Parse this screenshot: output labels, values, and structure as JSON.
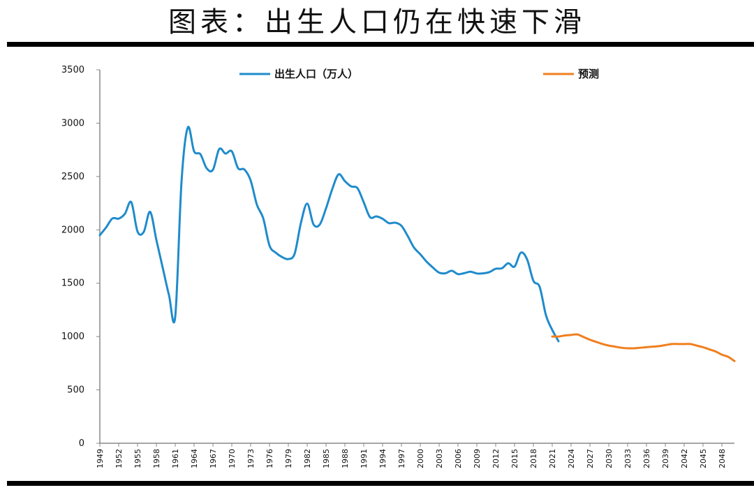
{
  "header": {
    "title": "图表：出生人口仍在快速下滑"
  },
  "chart_data": {
    "type": "line",
    "title": "",
    "xlabel": "",
    "ylabel": "",
    "ylim": [
      0,
      3500
    ],
    "xlim": [
      1949,
      2050
    ],
    "y_ticks": [
      0,
      500,
      1000,
      1500,
      2000,
      2500,
      3000,
      3500
    ],
    "y_tick_labels": [
      "0",
      "500",
      "1000",
      "1500",
      "2000",
      "2500",
      "3000",
      "3500"
    ],
    "x_ticks": [
      1949,
      1952,
      1955,
      1958,
      1961,
      1964,
      1967,
      1970,
      1973,
      1976,
      1979,
      1982,
      1985,
      1988,
      1991,
      1994,
      1997,
      2000,
      2003,
      2006,
      2009,
      2012,
      2015,
      2018,
      2021,
      2024,
      2027,
      2030,
      2033,
      2036,
      2039,
      2042,
      2045,
      2048
    ],
    "x_tick_labels": [
      "1949",
      "1952",
      "1955",
      "1958",
      "1961",
      "1964",
      "1967",
      "1970",
      "1973",
      "1976",
      "1979",
      "1982",
      "1985",
      "1988",
      "1991",
      "1994",
      "1997",
      "2000",
      "2003",
      "2006",
      "2009",
      "2012",
      "2015",
      "2018",
      "2021",
      "2024",
      "2027",
      "2030",
      "2033",
      "2036",
      "2039",
      "2042",
      "2045",
      "2048"
    ],
    "grid": false,
    "legend_position": "top",
    "series": [
      {
        "name": "出生人口（万人）",
        "color": "#1f8bcb",
        "x": [
          1949,
          1950,
          1951,
          1952,
          1953,
          1954,
          1955,
          1956,
          1957,
          1958,
          1959,
          1960,
          1961,
          1962,
          1963,
          1964,
          1965,
          1966,
          1967,
          1968,
          1969,
          1970,
          1971,
          1972,
          1973,
          1974,
          1975,
          1976,
          1977,
          1978,
          1979,
          1980,
          1981,
          1982,
          1983,
          1984,
          1985,
          1986,
          1987,
          1988,
          1989,
          1990,
          1991,
          1992,
          1993,
          1994,
          1995,
          1996,
          1997,
          1998,
          1999,
          2000,
          2001,
          2002,
          2003,
          2004,
          2005,
          2006,
          2007,
          2008,
          2009,
          2010,
          2011,
          2012,
          2013,
          2014,
          2015,
          2016,
          2017,
          2018,
          2019,
          2020,
          2021,
          2022
        ],
        "values": [
          1950,
          2023,
          2107,
          2105,
          2151,
          2260,
          1984,
          1982,
          2169,
          1905,
          1647,
          1389,
          1187,
          2451,
          2959,
          2736,
          2709,
          2577,
          2563,
          2757,
          2715,
          2736,
          2578,
          2566,
          2463,
          2235,
          2109,
          1853,
          1786,
          1745,
          1726,
          1776,
          2064,
          2246,
          2052,
          2050,
          2202,
          2384,
          2520,
          2457,
          2407,
          2391,
          2258,
          2119,
          2126,
          2104,
          2063,
          2067,
          2038,
          1942,
          1834,
          1771,
          1702,
          1647,
          1599,
          1593,
          1617,
          1585,
          1594,
          1608,
          1591,
          1592,
          1604,
          1635,
          1640,
          1687,
          1655,
          1786,
          1723,
          1523,
          1465,
          1200,
          1062,
          956
        ]
      },
      {
        "name": "预测",
        "color": "#f07f1f",
        "x": [
          2021,
          2022,
          2023,
          2024,
          2025,
          2026,
          2027,
          2028,
          2029,
          2030,
          2031,
          2032,
          2033,
          2034,
          2035,
          2036,
          2037,
          2038,
          2039,
          2040,
          2041,
          2042,
          2043,
          2044,
          2045,
          2046,
          2047,
          2048,
          2049,
          2050
        ],
        "values": [
          1000,
          1000,
          1010,
          1015,
          1020,
          995,
          970,
          950,
          930,
          915,
          905,
          895,
          890,
          890,
          895,
          900,
          905,
          910,
          920,
          930,
          930,
          930,
          930,
          915,
          900,
          880,
          860,
          830,
          810,
          770
        ]
      }
    ]
  }
}
